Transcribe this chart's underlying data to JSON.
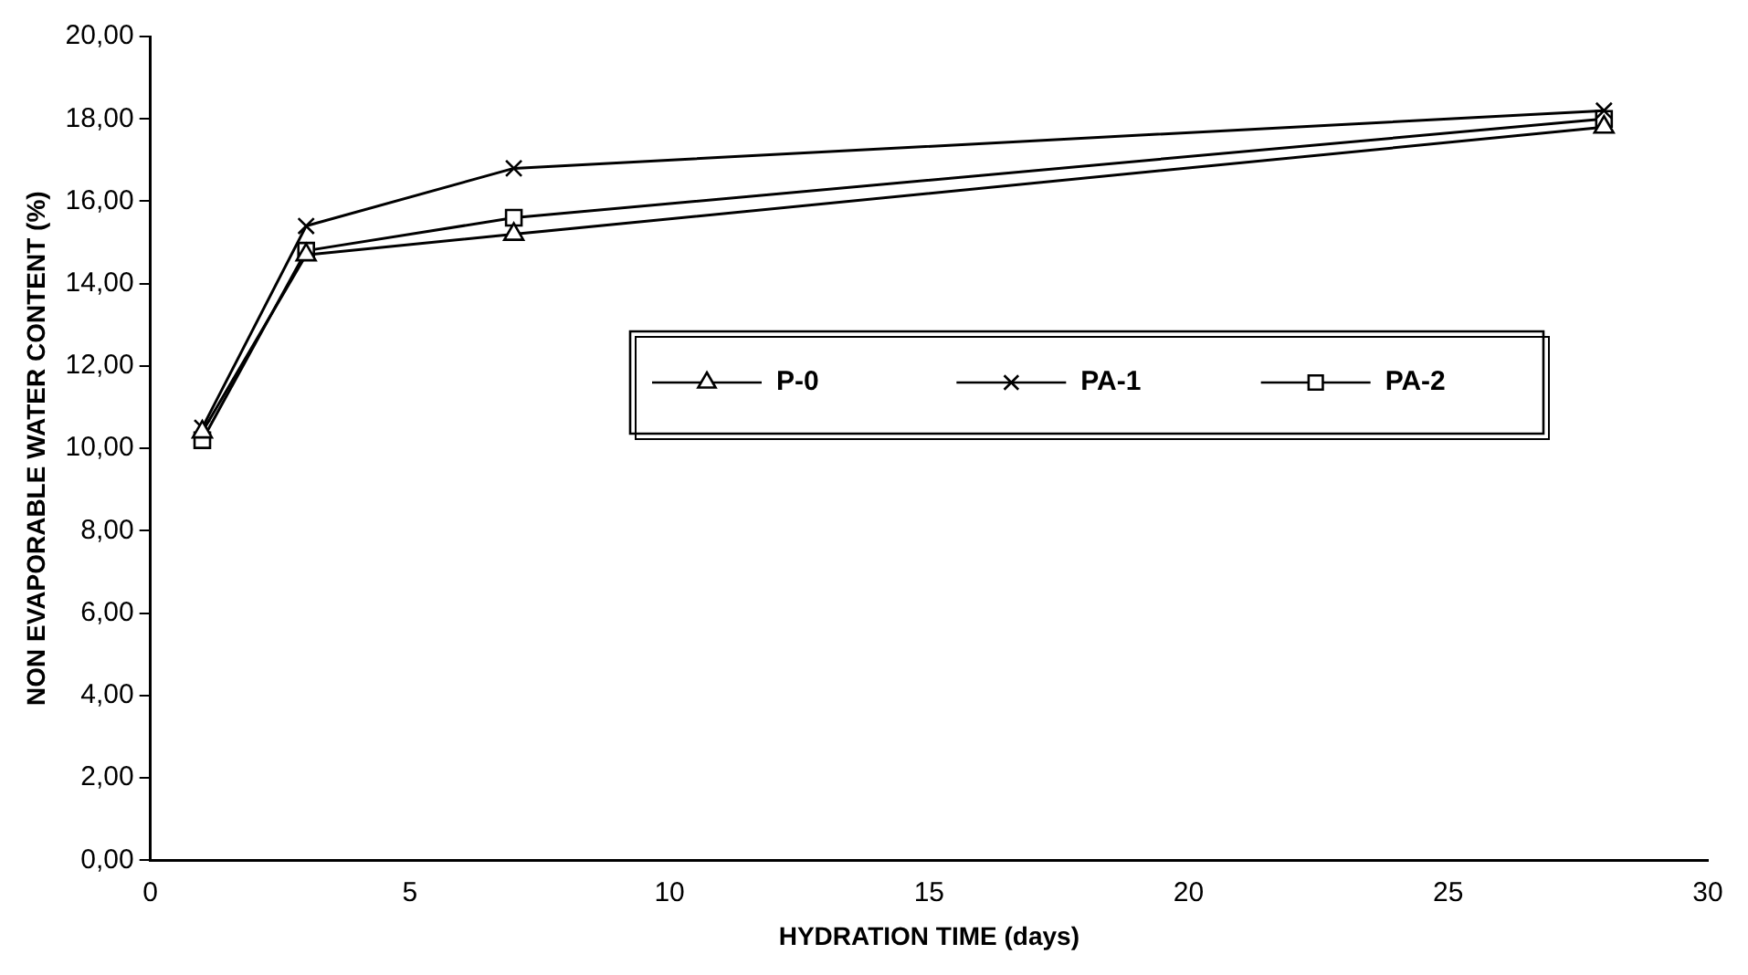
{
  "chart_data": {
    "type": "line",
    "xlabel": "HYDRATION TIME (days)",
    "ylabel": "NON EVAPORABLE WATER CONTENT (%)",
    "x": [
      1,
      3,
      7,
      28
    ],
    "series": [
      {
        "name": "P-0",
        "color": "#000000",
        "marker": "triangle",
        "values": [
          10.4,
          14.7,
          15.2,
          17.8
        ]
      },
      {
        "name": "PA-1",
        "color": "#000000",
        "marker": "cross",
        "values": [
          10.5,
          15.4,
          16.8,
          18.2
        ]
      },
      {
        "name": "PA-2",
        "color": "#000000",
        "marker": "square",
        "values": [
          10.2,
          14.8,
          15.6,
          18.0
        ]
      }
    ],
    "xlim": [
      0,
      30
    ],
    "xticks": [
      0,
      5,
      10,
      15,
      20,
      25,
      30
    ],
    "ylim": [
      0,
      20
    ],
    "yticks": [
      {
        "value": 0,
        "label": "0,00"
      },
      {
        "value": 2,
        "label": "2,00"
      },
      {
        "value": 4,
        "label": "4,00"
      },
      {
        "value": 6,
        "label": "6,00"
      },
      {
        "value": 8,
        "label": "8,00"
      },
      {
        "value": 10,
        "label": "10,00"
      },
      {
        "value": 12,
        "label": "12,00"
      },
      {
        "value": 14,
        "label": "14,00"
      },
      {
        "value": 16,
        "label": "16,00"
      },
      {
        "value": 18,
        "label": "18,00"
      },
      {
        "value": 20,
        "label": "20,00"
      }
    ],
    "grid": false,
    "legend": "right",
    "line_style": "solid"
  }
}
